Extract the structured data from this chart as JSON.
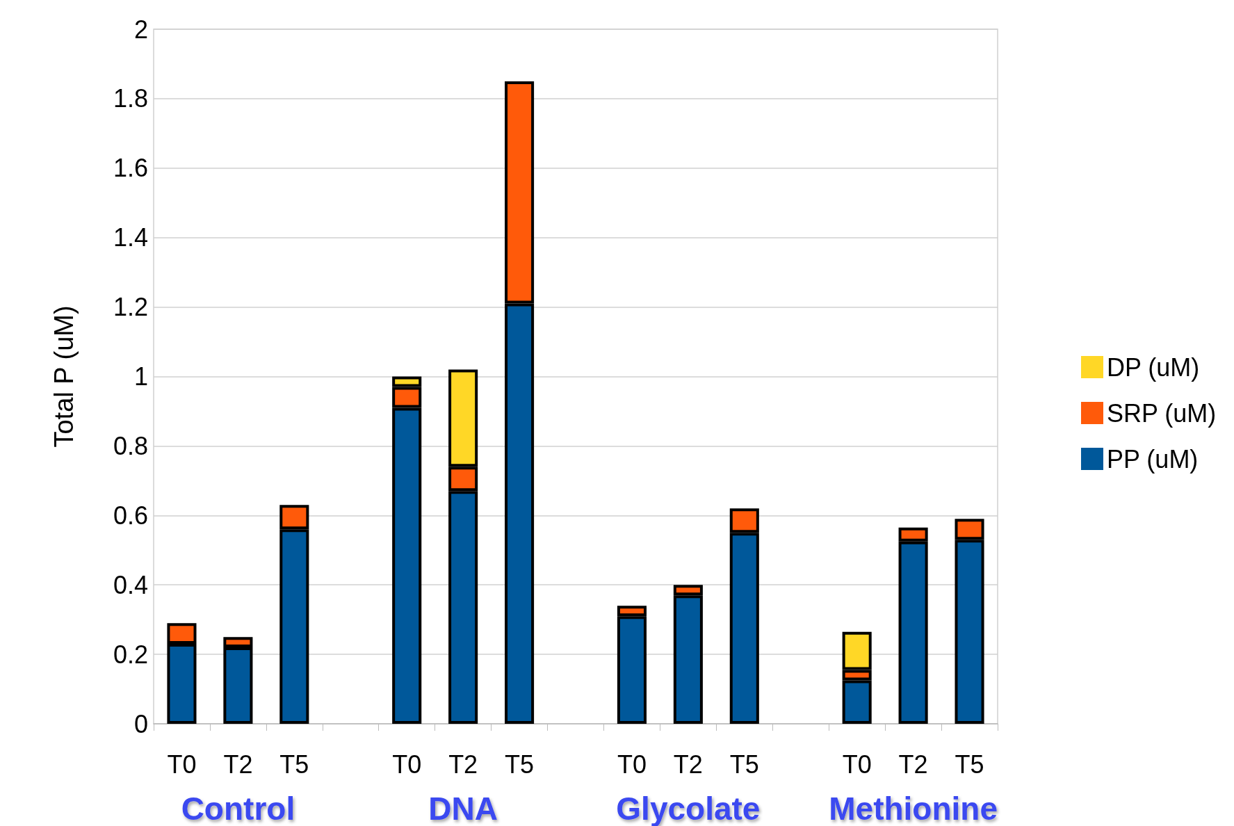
{
  "chart_data": {
    "type": "bar",
    "stacked": true,
    "ylabel": "Total P (uM)",
    "categories": [
      "T0",
      "T2",
      "T5",
      null,
      "T0",
      "T2",
      "T5",
      null,
      "T0",
      "T2",
      "T5",
      null,
      "T0",
      "T2",
      "T5"
    ],
    "series": [
      {
        "name": "PP (uM)",
        "color": "#00589a",
        "values": [
          0.23,
          0.22,
          0.56,
          null,
          0.91,
          0.67,
          1.21,
          null,
          0.31,
          0.37,
          0.55,
          null,
          0.125,
          0.525,
          0.53
        ]
      },
      {
        "name": "SRP (uM)",
        "color": "#ff5a0a",
        "values": [
          0.06,
          0.03,
          0.07,
          null,
          0.06,
          0.07,
          0.64,
          null,
          0.03,
          0.03,
          0.07,
          null,
          0.03,
          0.04,
          0.06
        ]
      },
      {
        "name": "DP (uM)",
        "color": "#ffd726",
        "values": [
          null,
          null,
          null,
          null,
          0.03,
          0.28,
          null,
          null,
          null,
          null,
          null,
          null,
          0.11,
          null,
          null
        ]
      }
    ],
    "ylim": [
      0,
      2
    ],
    "yticks": [
      0,
      0.2,
      0.4,
      0.6,
      0.8,
      1,
      1.2,
      1.4,
      1.6,
      1.8,
      2
    ],
    "grid": "y",
    "legend": "right",
    "annotations": [
      "Control",
      "DNA",
      "Glycolate",
      "Methionine"
    ]
  }
}
